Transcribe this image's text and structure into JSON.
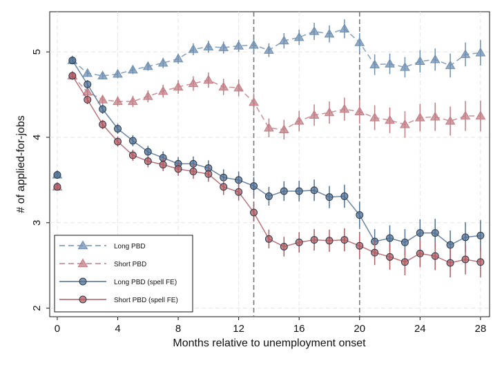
{
  "chart_data": {
    "type": "line",
    "xlabel": "Months relative to unemployment onset",
    "ylabel": "# of applied-for-jobs",
    "xlim": [
      -0.5,
      28.6
    ],
    "ylim": [
      1.9,
      5.47
    ],
    "xticks": [
      0,
      4,
      8,
      12,
      16,
      20,
      24,
      28
    ],
    "xtick_labels": [
      "0",
      "4",
      "8",
      "12",
      "16",
      "20",
      "24",
      "28"
    ],
    "yticks": [
      2,
      3,
      4,
      5
    ],
    "ytick_labels": [
      "2",
      "3",
      "4",
      "5"
    ],
    "grid": true,
    "reference_lines_x": [
      13,
      20
    ],
    "legend_position": "bottom-left",
    "series": [
      {
        "name": "Long PBD",
        "color": "#6f8fb0",
        "marker": "triangle",
        "line": "dashed",
        "x": [
          0,
          1,
          2,
          3,
          4,
          5,
          6,
          7,
          8,
          9,
          10,
          11,
          12,
          13,
          14,
          15,
          16,
          17,
          18,
          19,
          20,
          21,
          22,
          23,
          24,
          25,
          26,
          27,
          28
        ],
        "y": [
          3.56,
          4.9,
          4.75,
          4.72,
          4.74,
          4.79,
          4.83,
          4.87,
          4.92,
          5.03,
          5.06,
          5.05,
          5.07,
          5.08,
          5.02,
          5.13,
          5.17,
          5.24,
          5.21,
          5.27,
          5.11,
          4.85,
          4.86,
          4.82,
          4.89,
          4.91,
          4.84,
          4.97,
          4.99
        ],
        "err": [
          0.02,
          0.03,
          0.04,
          0.04,
          0.05,
          0.05,
          0.05,
          0.06,
          0.06,
          0.07,
          0.07,
          0.07,
          0.07,
          0.08,
          0.08,
          0.09,
          0.09,
          0.1,
          0.1,
          0.11,
          0.11,
          0.12,
          0.12,
          0.12,
          0.13,
          0.13,
          0.14,
          0.14,
          0.15
        ]
      },
      {
        "name": "Short PBD",
        "color": "#c17e85",
        "marker": "triangle",
        "line": "dashed",
        "x": [
          0,
          1,
          2,
          3,
          4,
          5,
          6,
          7,
          8,
          9,
          10,
          11,
          12,
          13,
          14,
          15,
          16,
          17,
          18,
          19,
          20,
          21,
          22,
          23,
          24,
          25,
          26,
          27,
          28
        ],
        "y": [
          3.42,
          4.72,
          4.53,
          4.44,
          4.42,
          4.42,
          4.48,
          4.54,
          4.59,
          4.63,
          4.67,
          4.59,
          4.58,
          4.41,
          4.11,
          4.09,
          4.19,
          4.26,
          4.29,
          4.33,
          4.3,
          4.23,
          4.2,
          4.15,
          4.23,
          4.24,
          4.19,
          4.25,
          4.25
        ]
      },
      {
        "name": "Long PBD (spell FE)",
        "color": "#4f6f93",
        "marker": "circle",
        "line": "solid",
        "x": [
          0,
          1,
          2,
          3,
          4,
          5,
          6,
          7,
          8,
          9,
          10,
          11,
          12,
          13,
          14,
          15,
          16,
          17,
          18,
          19,
          20,
          21,
          22,
          23,
          24,
          25,
          26,
          27,
          28
        ],
        "y": [
          3.56,
          4.9,
          4.62,
          4.33,
          4.1,
          3.96,
          3.83,
          3.76,
          3.69,
          3.69,
          3.64,
          3.53,
          3.5,
          3.43,
          3.31,
          3.37,
          3.37,
          3.38,
          3.3,
          3.31,
          3.09,
          2.78,
          2.82,
          2.77,
          2.88,
          2.88,
          2.74,
          2.83,
          2.85
        ]
      },
      {
        "name": "Short PBD (spell FE)",
        "color": "#b05a62",
        "marker": "circle",
        "line": "solid",
        "x": [
          0,
          1,
          2,
          3,
          4,
          5,
          6,
          7,
          8,
          9,
          10,
          11,
          12,
          13,
          14,
          15,
          16,
          17,
          18,
          19,
          20,
          21,
          22,
          23,
          24,
          25,
          26,
          27,
          28
        ],
        "y": [
          3.42,
          4.72,
          4.44,
          4.15,
          3.95,
          3.79,
          3.72,
          3.68,
          3.63,
          3.6,
          3.57,
          3.42,
          3.36,
          3.12,
          2.81,
          2.72,
          2.77,
          2.8,
          2.79,
          2.8,
          2.73,
          2.65,
          2.6,
          2.54,
          2.64,
          2.61,
          2.53,
          2.57,
          2.54
        ]
      }
    ]
  }
}
